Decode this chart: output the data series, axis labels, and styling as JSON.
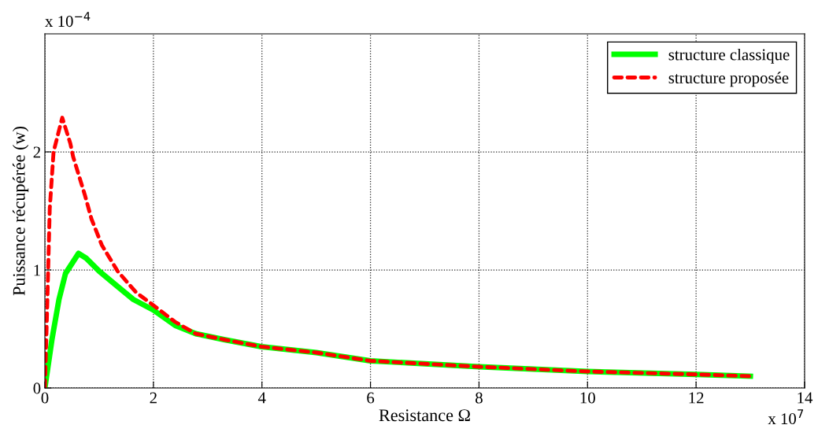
{
  "chart_data": {
    "type": "line",
    "xlabel": "Resistance Ω",
    "ylabel": "Puissance récupérée (w)",
    "xlim": [
      0,
      14
    ],
    "xticks": [
      0,
      2,
      4,
      6,
      8,
      10,
      12,
      14
    ],
    "ylim": [
      0,
      3
    ],
    "yticks": [
      0,
      1,
      2
    ],
    "grid": true,
    "legend": "top right",
    "annotations": [
      "x 10$^{−4}$",
      "x 10$^{7}$"
    ],
    "series": [
      {
        "name": "structure classique",
        "color": "#00ff00",
        "line_style": "solid",
        "x": [
          0,
          0.13,
          0.26,
          0.38,
          0.62,
          0.76,
          1.0,
          1.34,
          1.63,
          2.0,
          2.4,
          2.78,
          3.3,
          3.99,
          5,
          6,
          8,
          10,
          12,
          13
        ],
        "values": [
          0,
          0.41,
          0.75,
          0.97,
          1.14,
          1.1,
          0.99,
          0.86,
          0.75,
          0.66,
          0.53,
          0.46,
          0.41,
          0.35,
          0.3,
          0.23,
          0.18,
          0.14,
          0.115,
          0.1
        ]
      },
      {
        "name": "structure proposée",
        "color": "#ff0000",
        "line_style": "dashed",
        "x": [
          0,
          0.04,
          0.09,
          0.16,
          0.32,
          0.47,
          0.52,
          0.74,
          0.86,
          1.05,
          1.34,
          1.68,
          2.0,
          2.4,
          2.78,
          3.3,
          3.99,
          5,
          6,
          8,
          10,
          12,
          13
        ],
        "values": [
          0,
          0.64,
          1.52,
          2.0,
          2.29,
          2.07,
          1.96,
          1.63,
          1.43,
          1.21,
          0.99,
          0.81,
          0.7,
          0.56,
          0.46,
          0.41,
          0.35,
          0.3,
          0.23,
          0.18,
          0.14,
          0.115,
          0.1
        ]
      }
    ]
  }
}
